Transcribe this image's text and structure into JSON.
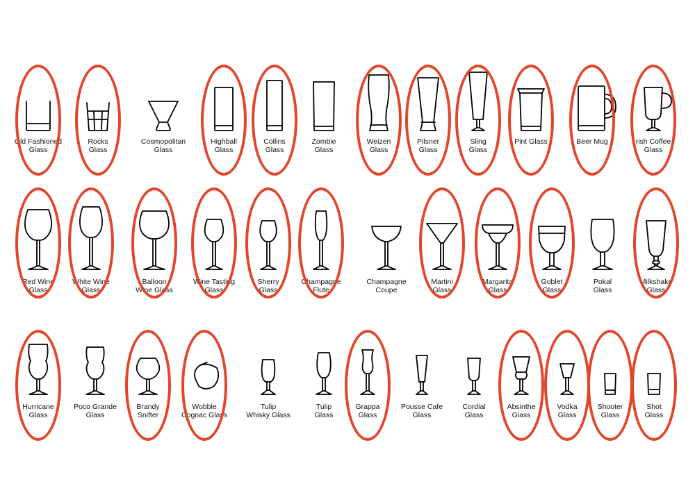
{
  "colors": {
    "highlight": "#e2452a",
    "ink": "#000000",
    "background": "#ffffff"
  },
  "rows": [
    [
      {
        "icon": "old-fashioned-glass-icon",
        "lines": [
          "Old Fashioned",
          "Glass"
        ],
        "circled": true
      },
      {
        "icon": "rocks-glass-icon",
        "lines": [
          "Rocks",
          "Glass"
        ],
        "circled": true
      },
      {
        "icon": "cosmopolitan-glass-icon",
        "lines": [
          "Cosmopolitan",
          "Glass"
        ],
        "circled": false
      },
      {
        "icon": "highball-glass-icon",
        "lines": [
          "Highball",
          "Glass"
        ],
        "circled": true
      },
      {
        "icon": "collins-glass-icon",
        "lines": [
          "Collins",
          "Glass"
        ],
        "circled": true
      },
      {
        "icon": "zombie-glass-icon",
        "lines": [
          "Zombie",
          "Glass"
        ],
        "circled": false
      },
      {
        "icon": "weizen-glass-icon",
        "lines": [
          "Weizen",
          "Glass"
        ],
        "circled": true
      },
      {
        "icon": "pilsner-glass-icon",
        "lines": [
          "Pilsner",
          "Glass"
        ],
        "circled": true
      },
      {
        "icon": "sling-glass-icon",
        "lines": [
          "Sling",
          "Glass"
        ],
        "circled": true
      },
      {
        "icon": "pint-glass-icon",
        "lines": [
          "Pint Glass"
        ],
        "circled": true
      },
      {
        "icon": "beer-mug-icon",
        "lines": [
          "Beer Mug"
        ],
        "circled": true
      },
      {
        "icon": "irish-coffee-glass-icon",
        "lines": [
          "rish Coffee",
          "Glass"
        ],
        "circled": true
      }
    ],
    [
      {
        "icon": "red-wine-glass-icon",
        "lines": [
          "Red Wine",
          "Glass"
        ],
        "circled": true
      },
      {
        "icon": "white-wine-glass-icon",
        "lines": [
          "White Wine",
          "Glass"
        ],
        "circled": true
      },
      {
        "icon": "balloon-wine-glass-icon",
        "lines": [
          "Balloon",
          "Wine Glass"
        ],
        "circled": true
      },
      {
        "icon": "wine-tasting-glass-icon",
        "lines": [
          "Wine Tasting",
          "Glass"
        ],
        "circled": true
      },
      {
        "icon": "sherry-glass-icon",
        "lines": [
          "Sherry",
          "Glass"
        ],
        "circled": true
      },
      {
        "icon": "champagne-flute-icon",
        "lines": [
          "Champagne",
          "Flute"
        ],
        "circled": true
      },
      {
        "icon": "champagne-coupe-icon",
        "lines": [
          "Champagne",
          "Coupe"
        ],
        "circled": false
      },
      {
        "icon": "martini-glass-icon",
        "lines": [
          "Martini",
          "Glass"
        ],
        "circled": true
      },
      {
        "icon": "margarita-glass-icon",
        "lines": [
          "Margarita",
          "Glass"
        ],
        "circled": true
      },
      {
        "icon": "goblet-glass-icon",
        "lines": [
          "Goblet",
          "Glass"
        ],
        "circled": true
      },
      {
        "icon": "pokal-glass-icon",
        "lines": [
          "Pokal",
          "Glass"
        ],
        "circled": false
      },
      {
        "icon": "milkshake-glass-icon",
        "lines": [
          "Milkshake",
          "Glass"
        ],
        "circled": true
      }
    ],
    [
      {
        "icon": "hurricane-glass-icon",
        "lines": [
          "Hurricane",
          "Glass"
        ],
        "circled": true
      },
      {
        "icon": "poco-grande-glass-icon",
        "lines": [
          "Poco Grande",
          "Glass"
        ],
        "circled": false
      },
      {
        "icon": "brandy-snifter-icon",
        "lines": [
          "Brandy",
          "Snifter"
        ],
        "circled": true
      },
      {
        "icon": "wobble-cognac-glass-icon",
        "lines": [
          "Wobble",
          "Cognac Glass"
        ],
        "circled": true
      },
      {
        "icon": "tulip-whisky-glass-icon",
        "lines": [
          "Tulip",
          "Whisky Glass"
        ],
        "circled": false
      },
      {
        "icon": "tulip-glass-icon",
        "lines": [
          "Tulip",
          "Glass"
        ],
        "circled": false
      },
      {
        "icon": "grappa-glass-icon",
        "lines": [
          "Grappa",
          "Glass"
        ],
        "circled": true
      },
      {
        "icon": "pousse-cafe-glass-icon",
        "lines": [
          "Pousse Cafe",
          "Glass"
        ],
        "circled": false
      },
      {
        "icon": "cordial-glass-icon",
        "lines": [
          "Cordial",
          "Glass"
        ],
        "circled": false
      },
      {
        "icon": "absinthe-glass-icon",
        "lines": [
          "Absinthe",
          "Glass"
        ],
        "circled": true
      },
      {
        "icon": "vodka-glass-icon",
        "lines": [
          "Vodka",
          "Glass"
        ],
        "circled": true
      },
      {
        "icon": "shooter-glass-icon",
        "lines": [
          "Shooter",
          "Glass"
        ],
        "circled": true
      },
      {
        "icon": "shot-glass-icon",
        "lines": [
          "Shot",
          "Glass"
        ],
        "circled": true
      }
    ]
  ]
}
